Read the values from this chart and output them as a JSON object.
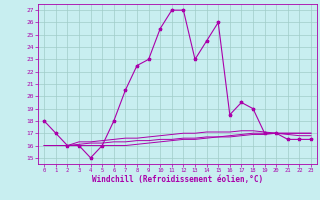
{
  "xlabel": "Windchill (Refroidissement éolien,°C)",
  "background_color": "#c8eef0",
  "grid_color": "#a0ccc8",
  "line_color": "#aa00aa",
  "xlim": [
    -0.5,
    23.5
  ],
  "ylim": [
    14.5,
    27.5
  ],
  "yticks": [
    15,
    16,
    17,
    18,
    19,
    20,
    21,
    22,
    23,
    24,
    25,
    26,
    27
  ],
  "xticks": [
    0,
    1,
    2,
    3,
    4,
    5,
    6,
    7,
    8,
    9,
    10,
    11,
    12,
    13,
    14,
    15,
    16,
    17,
    18,
    19,
    20,
    21,
    22,
    23
  ],
  "main_series": [
    18,
    17,
    16,
    16,
    15,
    16,
    18,
    20.5,
    22.5,
    23,
    25.5,
    27,
    27,
    23,
    24.5,
    26,
    18.5,
    19.5,
    19,
    17,
    17,
    16.5,
    16.5,
    16.5
  ],
  "flat_series1": [
    16,
    16,
    16,
    16,
    16,
    16,
    16,
    16,
    16.1,
    16.2,
    16.3,
    16.4,
    16.5,
    16.5,
    16.6,
    16.7,
    16.7,
    16.8,
    16.9,
    16.9,
    17.0,
    17.0,
    17.0,
    17.0
  ],
  "flat_series2": [
    16,
    16,
    16,
    16.1,
    16.2,
    16.2,
    16.3,
    16.3,
    16.4,
    16.4,
    16.5,
    16.5,
    16.6,
    16.6,
    16.7,
    16.7,
    16.8,
    16.9,
    17.0,
    17.0,
    17.0,
    17.0,
    17.0,
    17.0
  ],
  "flat_series3": [
    16,
    16,
    16,
    16.3,
    16.3,
    16.4,
    16.5,
    16.6,
    16.6,
    16.7,
    16.8,
    16.9,
    17.0,
    17.0,
    17.1,
    17.1,
    17.1,
    17.2,
    17.2,
    17.1,
    17.0,
    16.9,
    16.8,
    16.8
  ]
}
